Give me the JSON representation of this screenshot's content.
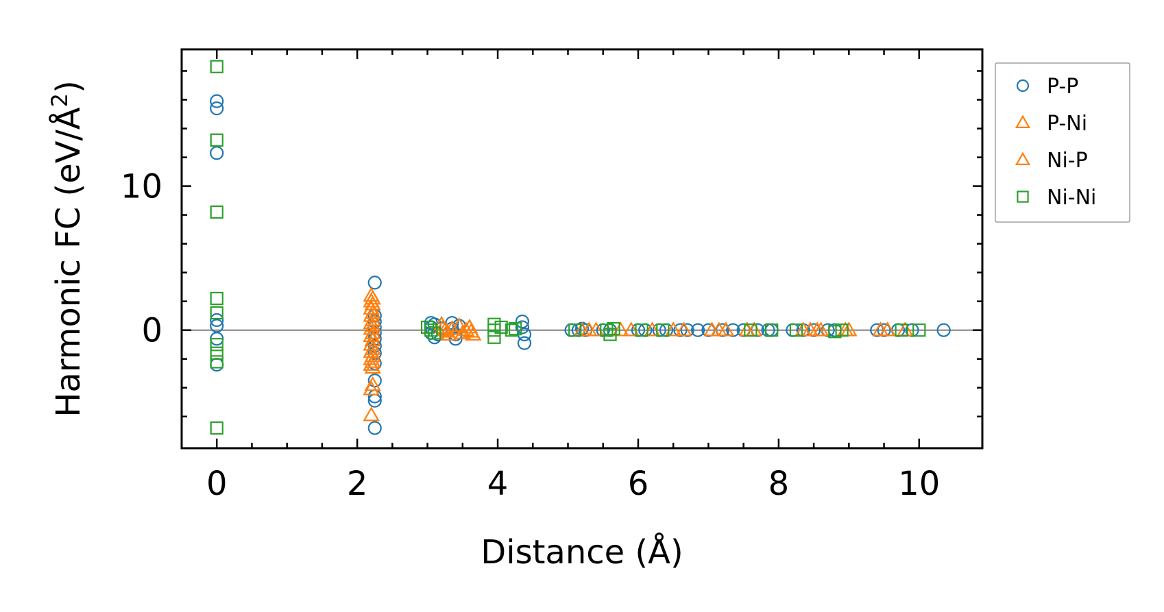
{
  "chart_data": {
    "type": "scatter",
    "xlabel": "Distance (Å)",
    "ylabel": {
      "prefix": "Harmonic FC (eV/Å",
      "superscript": "2",
      "suffix": ")"
    },
    "xlim": [
      -0.5,
      10.9
    ],
    "ylim": [
      -8.2,
      19.5
    ],
    "xticks": [
      0,
      2,
      4,
      6,
      8,
      10
    ],
    "yticks": [
      0,
      10
    ],
    "grid": false,
    "zero_line": true,
    "legend_position": "outside-right",
    "series": [
      {
        "name": "P-P",
        "marker": "circle",
        "color": "#1f77b4",
        "points": [
          [
            0.0,
            15.9
          ],
          [
            0.0,
            15.4
          ],
          [
            0.0,
            12.3
          ],
          [
            0.0,
            0.7
          ],
          [
            0.0,
            0.3
          ],
          [
            0.0,
            -0.6
          ],
          [
            0.0,
            -2.4
          ],
          [
            2.25,
            3.3
          ],
          [
            2.25,
            1.0
          ],
          [
            2.25,
            0.6
          ],
          [
            2.25,
            0.2
          ],
          [
            2.25,
            -0.2
          ],
          [
            2.25,
            -0.6
          ],
          [
            2.25,
            -1.1
          ],
          [
            2.25,
            -1.6
          ],
          [
            2.25,
            -2.3
          ],
          [
            2.25,
            -3.5
          ],
          [
            2.25,
            -4.6
          ],
          [
            2.25,
            -4.9
          ],
          [
            2.25,
            -6.8
          ],
          [
            3.05,
            0.5
          ],
          [
            3.05,
            0.2
          ],
          [
            3.05,
            -0.2
          ],
          [
            3.1,
            -0.5
          ],
          [
            3.1,
            0.4
          ],
          [
            3.15,
            -0.3
          ],
          [
            3.2,
            0.1
          ],
          [
            3.35,
            0.5
          ],
          [
            3.35,
            0.1
          ],
          [
            3.4,
            -0.3
          ],
          [
            3.4,
            -0.6
          ],
          [
            3.45,
            0.3
          ],
          [
            4.35,
            0.6
          ],
          [
            4.35,
            0.2
          ],
          [
            4.38,
            -0.3
          ],
          [
            4.38,
            -0.9
          ],
          [
            5.05,
            0.0
          ],
          [
            5.15,
            0.0
          ],
          [
            5.2,
            0.1
          ],
          [
            5.25,
            0.0
          ],
          [
            5.5,
            0.0
          ],
          [
            5.6,
            0.0
          ],
          [
            6.0,
            0.0
          ],
          [
            6.1,
            0.0
          ],
          [
            6.3,
            0.0
          ],
          [
            6.4,
            0.0
          ],
          [
            6.6,
            0.0
          ],
          [
            6.7,
            0.0
          ],
          [
            6.85,
            0.0
          ],
          [
            7.0,
            0.0
          ],
          [
            7.2,
            0.0
          ],
          [
            7.35,
            0.0
          ],
          [
            7.5,
            0.0
          ],
          [
            7.7,
            0.0
          ],
          [
            7.85,
            0.0
          ],
          [
            7.9,
            0.0
          ],
          [
            8.2,
            0.0
          ],
          [
            8.35,
            0.0
          ],
          [
            8.5,
            0.0
          ],
          [
            8.7,
            0.0
          ],
          [
            8.8,
            0.0
          ],
          [
            9.4,
            0.0
          ],
          [
            9.5,
            0.0
          ],
          [
            9.7,
            0.0
          ],
          [
            9.9,
            0.0
          ],
          [
            10.35,
            0.0
          ]
        ]
      },
      {
        "name": "P-Ni",
        "marker": "triangle",
        "color": "#ff7f0e",
        "points": [
          [
            2.2,
            2.4
          ],
          [
            2.2,
            2.0
          ],
          [
            2.2,
            1.5
          ],
          [
            2.2,
            1.0
          ],
          [
            2.2,
            0.5
          ],
          [
            2.2,
            0.1
          ],
          [
            2.2,
            -0.4
          ],
          [
            2.2,
            -1.0
          ],
          [
            2.2,
            -1.5
          ],
          [
            2.2,
            -2.0
          ],
          [
            2.2,
            -2.4
          ],
          [
            2.2,
            -4.1
          ],
          [
            2.2,
            -5.9
          ],
          [
            3.2,
            0.4
          ],
          [
            3.25,
            0.0
          ],
          [
            3.3,
            -0.3
          ],
          [
            3.45,
            0.3
          ],
          [
            3.5,
            -0.2
          ],
          [
            3.6,
            0.2
          ],
          [
            3.65,
            -0.3
          ],
          [
            5.2,
            0.0
          ],
          [
            5.4,
            0.0
          ],
          [
            5.9,
            0.0
          ],
          [
            6.5,
            0.0
          ],
          [
            6.65,
            0.0
          ],
          [
            7.15,
            0.0
          ],
          [
            7.55,
            0.0
          ],
          [
            8.35,
            0.0
          ],
          [
            8.55,
            0.0
          ],
          [
            9.0,
            0.0
          ],
          [
            9.45,
            0.0
          ],
          [
            9.8,
            0.0
          ]
        ]
      },
      {
        "name": "Ni-P",
        "marker": "triangle",
        "color": "#ff7f0e",
        "points": [
          [
            2.22,
            2.2
          ],
          [
            2.22,
            1.8
          ],
          [
            2.22,
            1.2
          ],
          [
            2.22,
            0.7
          ],
          [
            2.22,
            0.3
          ],
          [
            2.22,
            -0.2
          ],
          [
            2.22,
            -0.7
          ],
          [
            2.22,
            -1.3
          ],
          [
            2.22,
            -1.8
          ],
          [
            2.22,
            -2.2
          ],
          [
            2.22,
            -2.6
          ],
          [
            2.22,
            -3.8
          ],
          [
            3.22,
            0.2
          ],
          [
            3.28,
            -0.1
          ],
          [
            3.35,
            0.1
          ],
          [
            3.55,
            0.0
          ],
          [
            3.62,
            -0.1
          ],
          [
            5.3,
            0.0
          ],
          [
            5.75,
            0.0
          ],
          [
            6.2,
            0.0
          ],
          [
            7.05,
            0.0
          ],
          [
            7.25,
            0.0
          ],
          [
            7.65,
            0.0
          ],
          [
            8.45,
            0.0
          ],
          [
            8.6,
            0.0
          ],
          [
            8.95,
            0.0
          ],
          [
            9.55,
            0.0
          ]
        ]
      },
      {
        "name": "Ni-Ni",
        "marker": "square",
        "color": "#2ca02c",
        "points": [
          [
            0.0,
            18.3
          ],
          [
            0.0,
            13.2
          ],
          [
            0.0,
            8.2
          ],
          [
            0.0,
            2.2
          ],
          [
            0.0,
            1.2
          ],
          [
            0.0,
            -1.0
          ],
          [
            0.0,
            -1.6
          ],
          [
            0.0,
            -2.2
          ],
          [
            0.0,
            -6.8
          ],
          [
            3.0,
            0.2
          ],
          [
            3.05,
            0.0
          ],
          [
            3.1,
            -0.2
          ],
          [
            3.95,
            0.4
          ],
          [
            3.95,
            0.0
          ],
          [
            3.95,
            -0.5
          ],
          [
            4.05,
            0.2
          ],
          [
            4.2,
            0.0
          ],
          [
            4.25,
            0.1
          ],
          [
            5.1,
            0.0
          ],
          [
            5.55,
            0.0
          ],
          [
            5.6,
            -0.3
          ],
          [
            5.65,
            0.1
          ],
          [
            6.05,
            0.0
          ],
          [
            6.35,
            0.0
          ],
          [
            7.6,
            0.0
          ],
          [
            7.9,
            0.0
          ],
          [
            8.25,
            0.0
          ],
          [
            8.8,
            -0.1
          ],
          [
            8.9,
            0.0
          ],
          [
            9.75,
            0.0
          ],
          [
            10.0,
            0.0
          ]
        ]
      }
    ]
  }
}
